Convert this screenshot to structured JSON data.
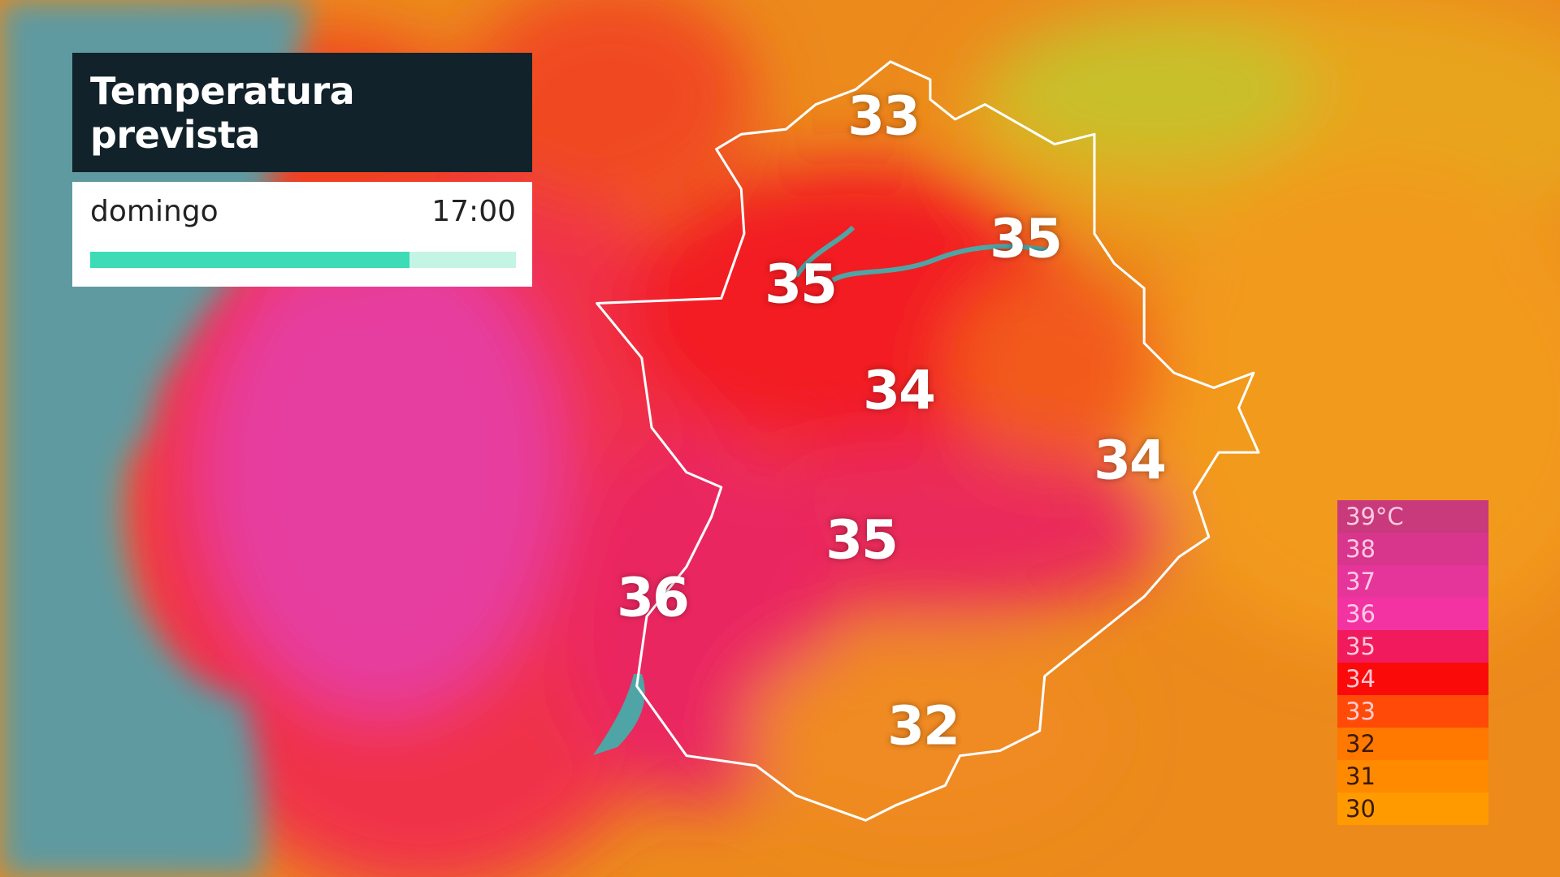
{
  "header": {
    "title": "Temperatura prevista",
    "day": "domingo",
    "time": "17:00"
  },
  "map_labels": [
    "33",
    "35",
    "35",
    "34",
    "34",
    "35",
    "36",
    "32"
  ],
  "legend": {
    "items": [
      {
        "label": "39°C",
        "color": "#c83a7c"
      },
      {
        "label": "38",
        "color": "#d8358c"
      },
      {
        "label": "37",
        "color": "#e6359a"
      },
      {
        "label": "36",
        "color": "#f433a2"
      },
      {
        "label": "35",
        "color": "#f01a5c"
      },
      {
        "label": "34",
        "color": "#fb0a0a"
      },
      {
        "label": "33",
        "color": "#ff4a08"
      },
      {
        "label": "32",
        "color": "#ff7800"
      },
      {
        "label": "31",
        "color": "#ff8a00"
      },
      {
        "label": "30",
        "color": "#ff9a00"
      }
    ]
  }
}
